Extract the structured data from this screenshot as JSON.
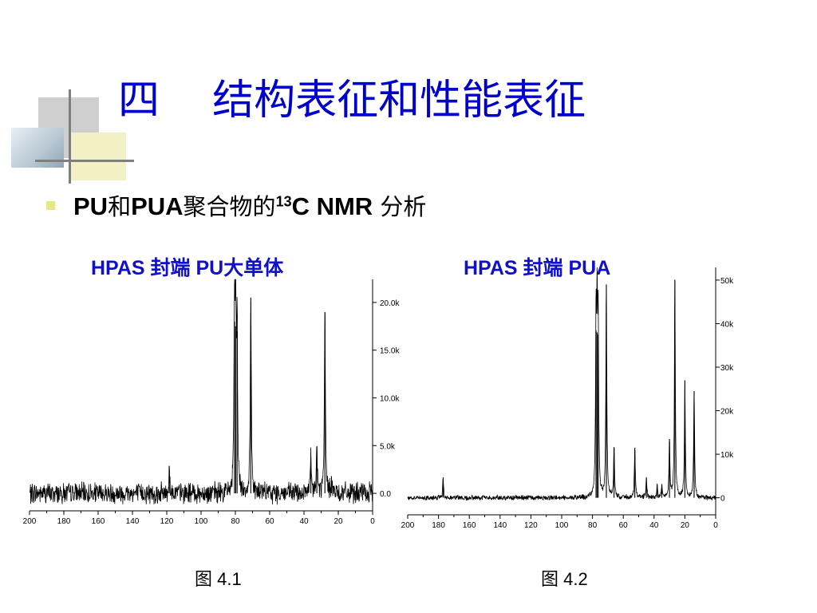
{
  "slide": {
    "title": "四    结构表征和性能表征",
    "bullet": {
      "part1": "PU",
      "part2": "和",
      "part3": "PUA",
      "part4": "聚合物的",
      "sup": "13",
      "part5": "C NMR",
      "part6": " 分析"
    }
  },
  "colors": {
    "title": "#0000cc",
    "chart_title": "#1010cc",
    "bullet": "#e6e68a"
  },
  "chart_data": [
    {
      "type": "line",
      "title": "HPAS 封端 PU大单体",
      "caption": "图 4.1",
      "xlim": [
        200,
        0
      ],
      "x_ticks": [
        "200",
        "180",
        "160",
        "140",
        "120",
        "100",
        "80",
        "60",
        "40",
        "20",
        "0"
      ],
      "ylim": [
        -1500,
        22000
      ],
      "y_ticks": [
        "0.0",
        "5.0k",
        "10.0k",
        "15.0k",
        "20.0k"
      ],
      "y_tick_values": [
        0,
        5000,
        10000,
        15000,
        20000
      ],
      "noise": 1300,
      "baseline": 0,
      "peaks": [
        {
          "ppm": 118.5,
          "height": 2500
        },
        {
          "ppm": 80.5,
          "height": 18000
        },
        {
          "ppm": 79.8,
          "height": 17500
        },
        {
          "ppm": 79.0,
          "height": 17000
        },
        {
          "ppm": 71.0,
          "height": 20500
        },
        {
          "ppm": 36.0,
          "height": 3700
        },
        {
          "ppm": 32.5,
          "height": 4800
        },
        {
          "ppm": 27.8,
          "height": 19000
        },
        {
          "ppm": 24.0,
          "height": 1800
        }
      ]
    },
    {
      "type": "line",
      "title": "HPAS 封端 PUA",
      "caption": "图 4.2",
      "xlim": [
        200,
        0
      ],
      "x_ticks": [
        "200",
        "180",
        "160",
        "140",
        "120",
        "100",
        "80",
        "60",
        "40",
        "20",
        "0"
      ],
      "ylim": [
        -3000,
        52000
      ],
      "y_ticks": [
        "0",
        "10k",
        "20k",
        "30k",
        "40k",
        "50k"
      ],
      "y_tick_values": [
        0,
        10000,
        20000,
        30000,
        40000,
        50000
      ],
      "noise": 700,
      "baseline": 0,
      "peaks": [
        {
          "ppm": 177.0,
          "height": 4500
        },
        {
          "ppm": 77.7,
          "height": 38500
        },
        {
          "ppm": 77.0,
          "height": 38000
        },
        {
          "ppm": 76.3,
          "height": 37500
        },
        {
          "ppm": 71.0,
          "height": 49000
        },
        {
          "ppm": 66.0,
          "height": 11500
        },
        {
          "ppm": 52.5,
          "height": 11500
        },
        {
          "ppm": 45.0,
          "height": 4500
        },
        {
          "ppm": 38.0,
          "height": 3000
        },
        {
          "ppm": 35.0,
          "height": 2800
        },
        {
          "ppm": 30.0,
          "height": 13500
        },
        {
          "ppm": 26.5,
          "height": 50000
        },
        {
          "ppm": 20.0,
          "height": 27000
        },
        {
          "ppm": 14.0,
          "height": 24500
        }
      ]
    }
  ]
}
